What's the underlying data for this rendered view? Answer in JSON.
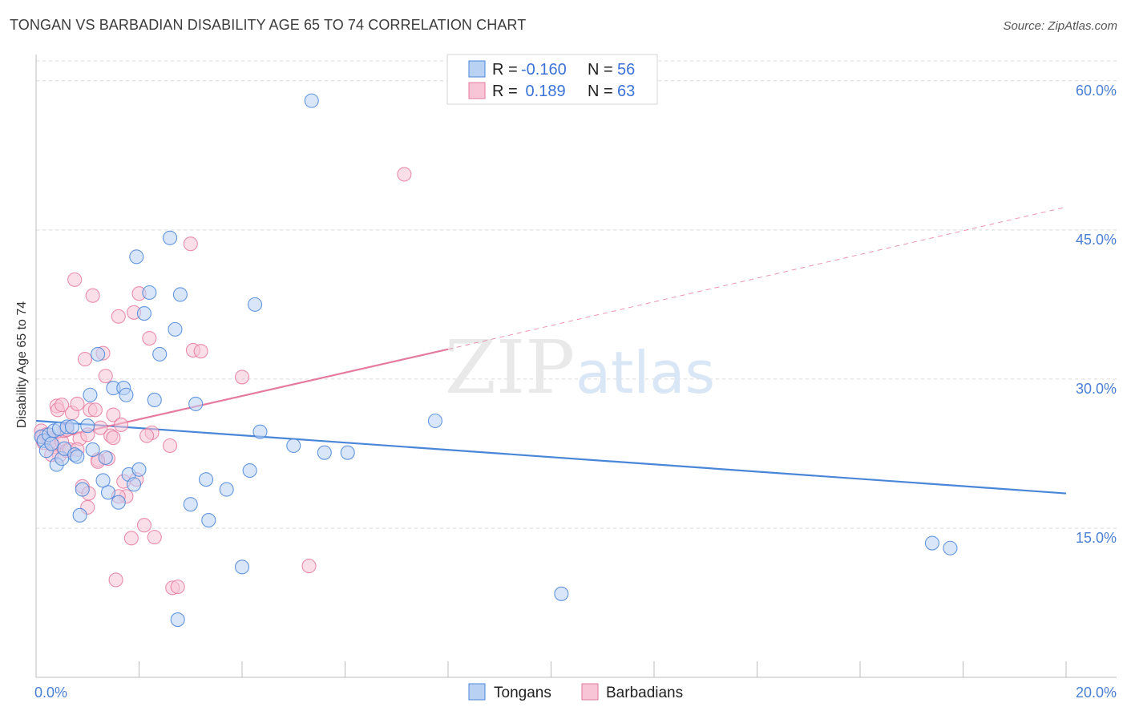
{
  "title": "TONGAN VS BARBADIAN DISABILITY AGE 65 TO 74 CORRELATION CHART",
  "source": "Source: ZipAtlas.com",
  "watermark": {
    "zip": "ZIP",
    "atlas": "atlas"
  },
  "colors": {
    "tongans": "#4a86d8",
    "tongans_fill": "#b9d2f4",
    "barbadians": "#e57aa0",
    "barbadians_fill": "#f7c5d6",
    "grid": "#d9d9d9",
    "axis_label": "#4a7fd4"
  },
  "legend": {
    "rows": [
      {
        "r_label": "R = ",
        "r_value": "-0.160",
        "n_label": "N = ",
        "n_value": "56"
      },
      {
        "r_label": "R = ",
        "r_value": " 0.189",
        "n_label": "N = ",
        "n_value": "63"
      }
    ]
  },
  "bottom_legend": {
    "tongans": "Tongans",
    "barbadians": "Barbadians"
  },
  "chart_data": {
    "type": "scatter",
    "title": "TONGAN VS BARBADIAN DISABILITY AGE 65 TO 74 CORRELATION CHART",
    "xlabel": "",
    "ylabel": "Disability Age 65 to 74",
    "xlim": [
      0,
      20
    ],
    "ylim": [
      0,
      62
    ],
    "x_tick_labels": [
      "0.0%",
      "20.0%"
    ],
    "y_ticks": [
      15,
      30,
      45,
      60
    ],
    "y_tick_labels": [
      "15.0%",
      "30.0%",
      "45.0%",
      "60.0%"
    ],
    "series": [
      {
        "name": "Tongans",
        "r": -0.16,
        "n": 56,
        "trend": {
          "x0": 0,
          "y0": 25.8,
          "x1": 20,
          "y1": 18.5,
          "dashed_to": null
        },
        "points": [
          [
            0.1,
            24.2
          ],
          [
            0.15,
            23.8
          ],
          [
            0.2,
            22.8
          ],
          [
            0.25,
            24.4
          ],
          [
            0.3,
            23.5
          ],
          [
            0.35,
            24.8
          ],
          [
            0.4,
            21.4
          ],
          [
            0.45,
            25.0
          ],
          [
            0.5,
            22.0
          ],
          [
            0.55,
            23.0
          ],
          [
            0.6,
            25.2
          ],
          [
            0.7,
            25.2
          ],
          [
            0.75,
            22.4
          ],
          [
            0.8,
            22.2
          ],
          [
            0.85,
            16.3
          ],
          [
            0.9,
            18.9
          ],
          [
            1.0,
            25.3
          ],
          [
            1.05,
            28.4
          ],
          [
            1.1,
            22.9
          ],
          [
            1.2,
            32.5
          ],
          [
            1.3,
            19.8
          ],
          [
            1.35,
            22.1
          ],
          [
            1.4,
            18.6
          ],
          [
            1.5,
            29.1
          ],
          [
            1.6,
            17.6
          ],
          [
            1.7,
            29.1
          ],
          [
            1.75,
            28.4
          ],
          [
            1.8,
            20.4
          ],
          [
            1.9,
            19.4
          ],
          [
            1.95,
            42.3
          ],
          [
            2.0,
            20.9
          ],
          [
            2.1,
            36.6
          ],
          [
            2.2,
            38.7
          ],
          [
            2.3,
            27.9
          ],
          [
            2.4,
            32.5
          ],
          [
            2.6,
            44.2
          ],
          [
            2.7,
            35.0
          ],
          [
            2.75,
            5.8
          ],
          [
            2.8,
            38.5
          ],
          [
            3.0,
            17.4
          ],
          [
            3.1,
            27.5
          ],
          [
            3.3,
            19.9
          ],
          [
            3.35,
            15.8
          ],
          [
            3.7,
            18.9
          ],
          [
            4.0,
            11.1
          ],
          [
            4.15,
            20.8
          ],
          [
            4.25,
            37.5
          ],
          [
            4.35,
            24.7
          ],
          [
            5.0,
            23.3
          ],
          [
            5.35,
            58.0
          ],
          [
            5.6,
            22.6
          ],
          [
            6.05,
            22.6
          ],
          [
            7.75,
            25.8
          ],
          [
            10.2,
            8.4
          ],
          [
            17.4,
            13.5
          ],
          [
            17.75,
            13.0
          ]
        ]
      },
      {
        "name": "Barbadians",
        "r": 0.189,
        "n": 63,
        "trend": {
          "x0": 0,
          "y0": 23.6,
          "x1": 8,
          "y1": 33.0,
          "dashed_to": [
            20,
            47.3
          ]
        },
        "points": [
          [
            0.1,
            24.8
          ],
          [
            0.12,
            24.2
          ],
          [
            0.15,
            23.6
          ],
          [
            0.2,
            24.4
          ],
          [
            0.25,
            24.0
          ],
          [
            0.3,
            23.8
          ],
          [
            0.35,
            23.2
          ],
          [
            0.4,
            27.3
          ],
          [
            0.42,
            26.9
          ],
          [
            0.45,
            22.3
          ],
          [
            0.5,
            23.7
          ],
          [
            0.55,
            24.8
          ],
          [
            0.6,
            22.8
          ],
          [
            0.65,
            22.9
          ],
          [
            0.7,
            26.6
          ],
          [
            0.75,
            40.0
          ],
          [
            0.8,
            27.5
          ],
          [
            0.85,
            24.0
          ],
          [
            0.9,
            19.2
          ],
          [
            0.95,
            32.0
          ],
          [
            1.0,
            17.1
          ],
          [
            1.02,
            18.5
          ],
          [
            1.05,
            26.9
          ],
          [
            1.1,
            38.4
          ],
          [
            1.15,
            26.9
          ],
          [
            1.2,
            21.9
          ],
          [
            1.25,
            25.1
          ],
          [
            1.3,
            32.6
          ],
          [
            1.35,
            30.3
          ],
          [
            1.4,
            22.0
          ],
          [
            1.45,
            24.3
          ],
          [
            1.5,
            26.4
          ],
          [
            1.55,
            9.8
          ],
          [
            1.6,
            36.3
          ],
          [
            1.65,
            25.4
          ],
          [
            1.7,
            19.7
          ],
          [
            1.75,
            18.2
          ],
          [
            1.85,
            14.0
          ],
          [
            1.9,
            36.7
          ],
          [
            1.95,
            19.9
          ],
          [
            2.0,
            38.6
          ],
          [
            2.1,
            15.3
          ],
          [
            2.2,
            34.1
          ],
          [
            2.25,
            24.6
          ],
          [
            2.3,
            14.1
          ],
          [
            2.6,
            23.3
          ],
          [
            2.65,
            9.0
          ],
          [
            2.75,
            9.1
          ],
          [
            3.0,
            43.6
          ],
          [
            3.05,
            32.9
          ],
          [
            3.2,
            32.8
          ],
          [
            4.0,
            30.2
          ],
          [
            5.3,
            11.2
          ],
          [
            7.15,
            50.6
          ],
          [
            1.6,
            18.2
          ],
          [
            1.2,
            21.7
          ],
          [
            0.6,
            24.9
          ],
          [
            0.3,
            22.4
          ],
          [
            1.0,
            24.4
          ],
          [
            2.15,
            24.3
          ],
          [
            0.8,
            22.9
          ],
          [
            1.5,
            24.1
          ],
          [
            0.5,
            27.4
          ]
        ]
      }
    ]
  }
}
